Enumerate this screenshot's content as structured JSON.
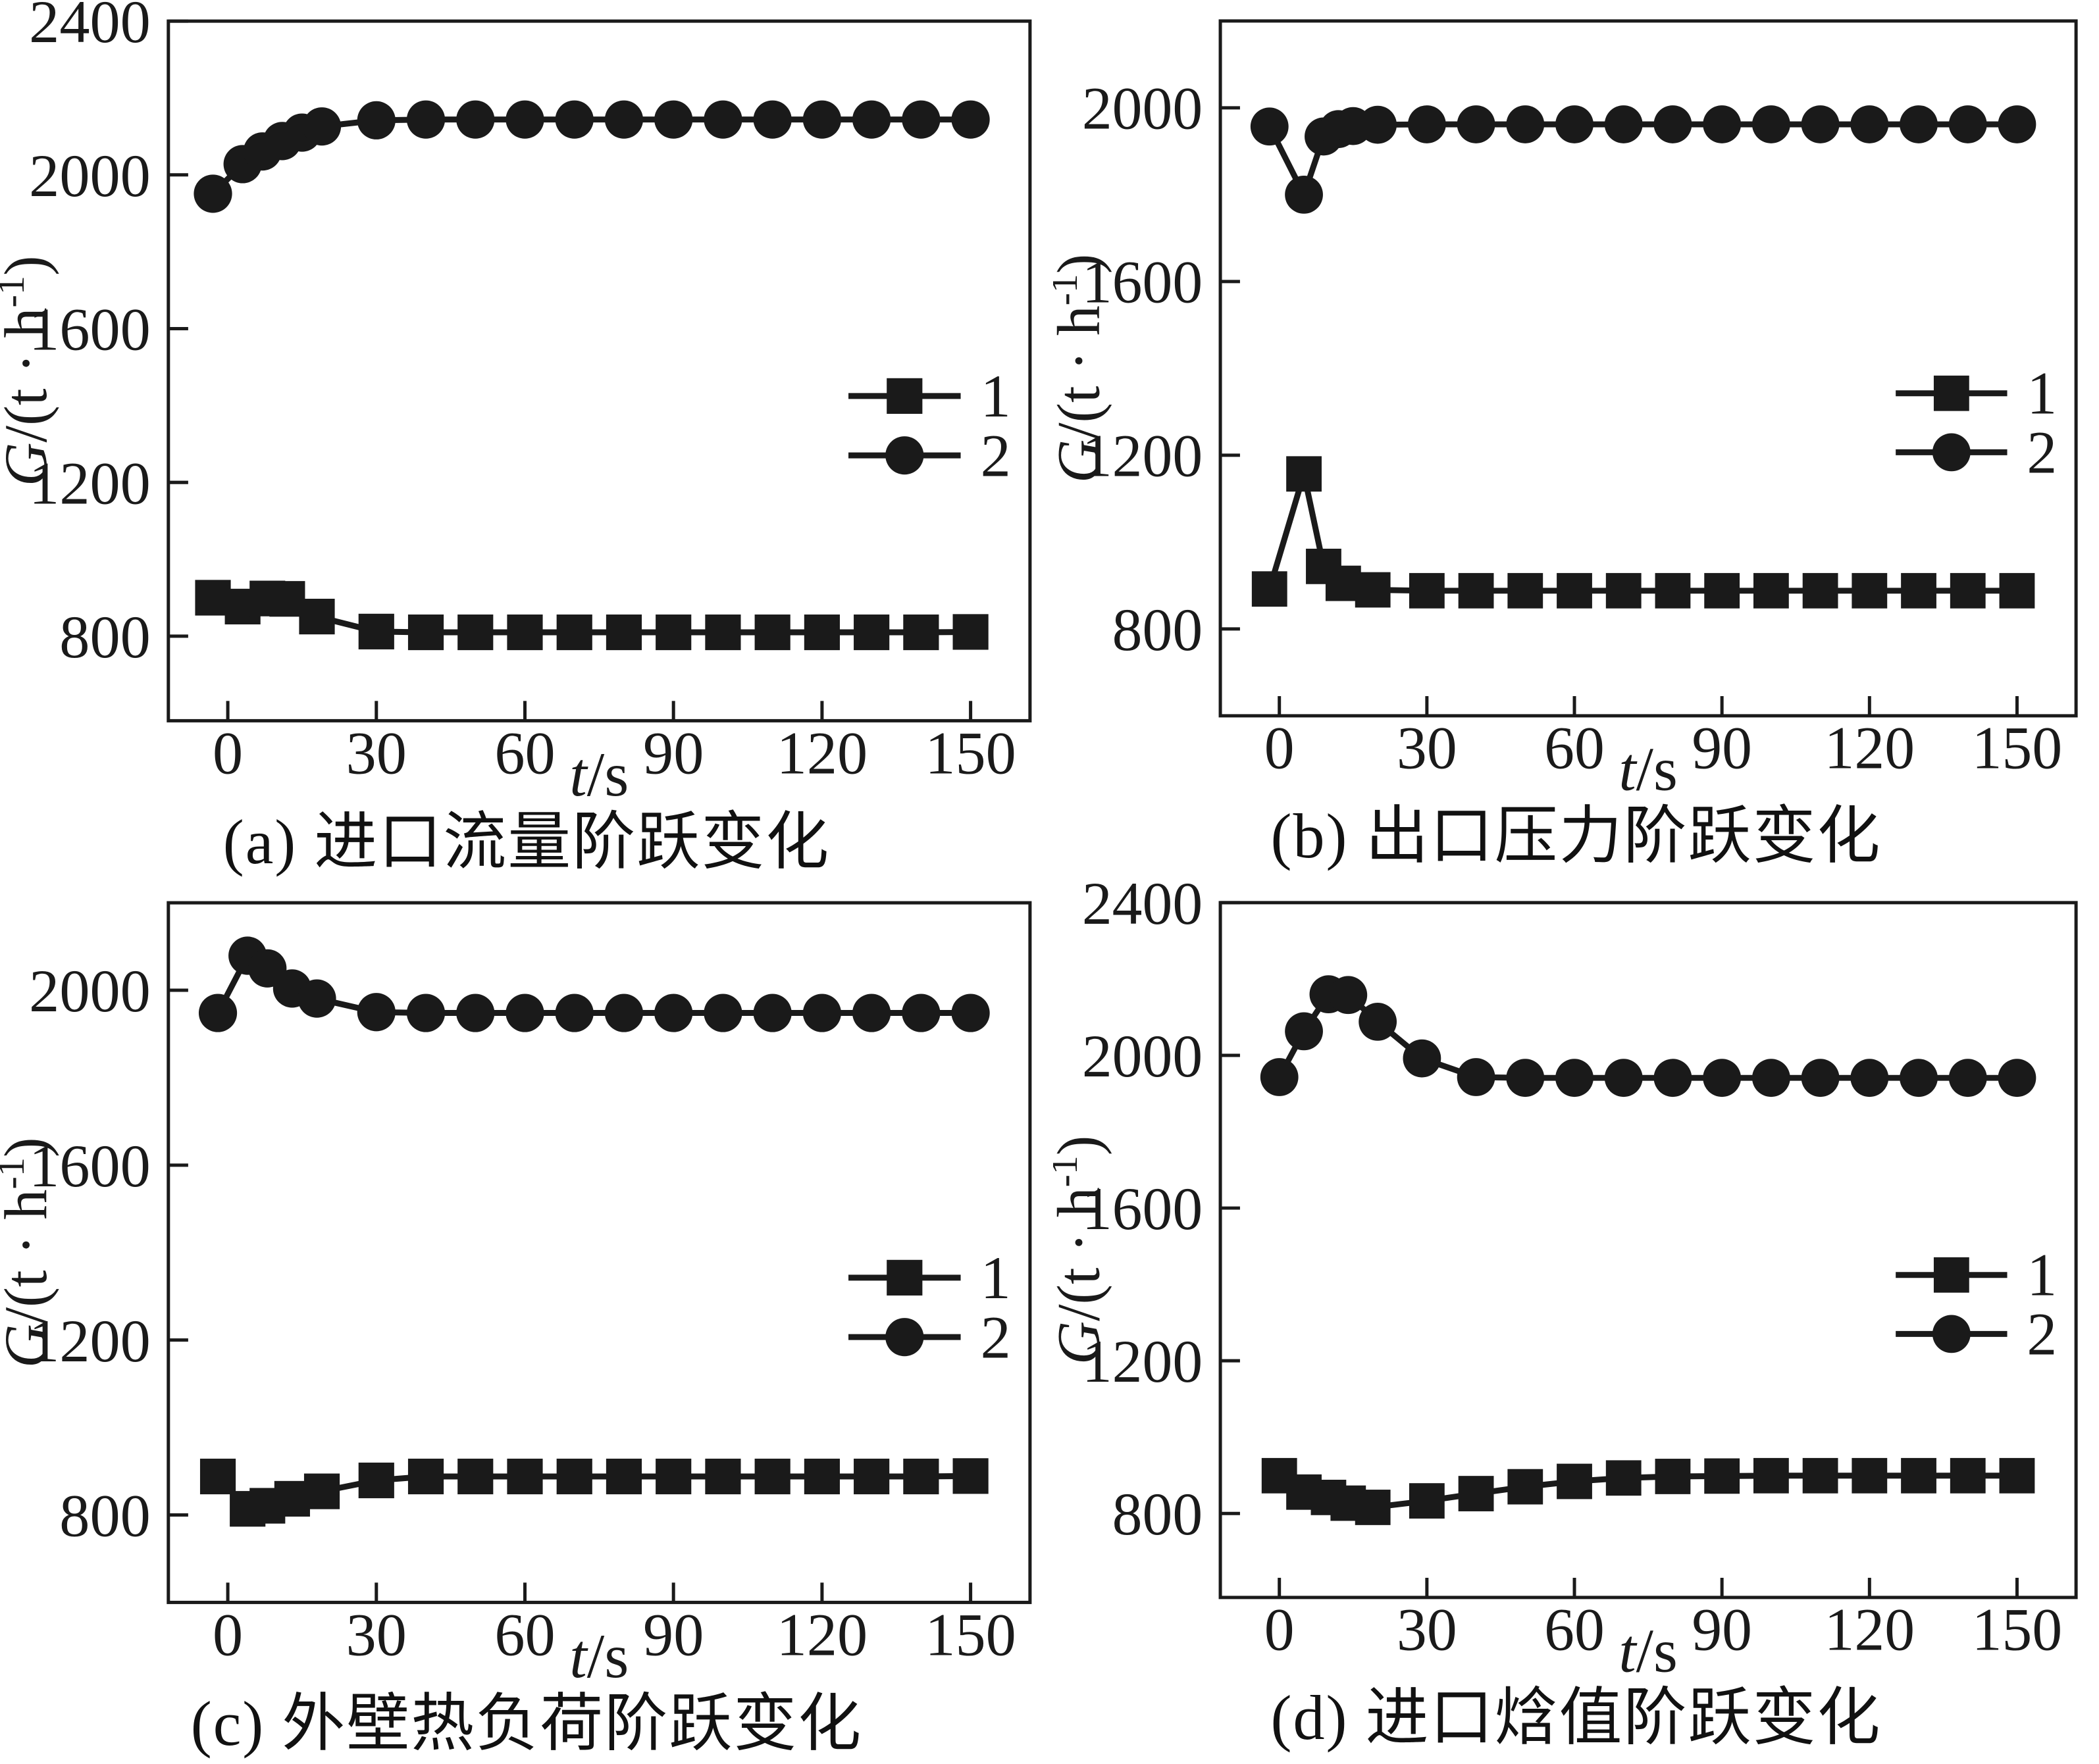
{
  "figure": {
    "title": "",
    "ink_color": "#1a1a1a",
    "background_color": "#ffffff",
    "ylabel_parts": {
      "base": "G",
      "divider": "/(t · h",
      "superscript": "-1",
      "close": ")"
    },
    "xlabel_parts": {
      "italic": "t",
      "rest": "/s"
    },
    "legend": [
      {
        "label": "1",
        "marker": "square"
      },
      {
        "label": "2",
        "marker": "circle"
      }
    ]
  },
  "chart_data": [
    {
      "id": "a",
      "type": "line",
      "caption": "(a) 进口流量阶跃变化",
      "xlabel": "t/s",
      "ylabel": "G/(t·h−1)",
      "grid": false,
      "legend_position": "right-middle",
      "xdomain": [
        -12,
        162
      ],
      "ydomain": [
        580,
        2400
      ],
      "xticks": [
        0,
        30,
        60,
        90,
        120,
        150
      ],
      "yticks": [
        800,
        1200,
        1600,
        2000,
        2400
      ],
      "series": [
        {
          "name": "1",
          "marker": "square",
          "points": [
            [
              -3,
              900
            ],
            [
              3,
              877
            ],
            [
              8,
              898
            ],
            [
              12,
              897
            ],
            [
              18,
              851
            ],
            [
              30,
              812
            ],
            [
              40,
              810
            ],
            [
              50,
              810
            ],
            [
              60,
              810
            ],
            [
              70,
              810
            ],
            [
              80,
              810
            ],
            [
              90,
              810
            ],
            [
              100,
              810
            ],
            [
              110,
              810
            ],
            [
              120,
              810
            ],
            [
              130,
              810
            ],
            [
              140,
              810
            ],
            [
              150,
              811
            ]
          ]
        },
        {
          "name": "2",
          "marker": "circle",
          "points": [
            [
              -3,
              1951
            ],
            [
              3,
              2028
            ],
            [
              7,
              2061
            ],
            [
              11,
              2088
            ],
            [
              15,
              2110
            ],
            [
              19,
              2126
            ],
            [
              30,
              2142
            ],
            [
              40,
              2144
            ],
            [
              50,
              2144
            ],
            [
              60,
              2144
            ],
            [
              70,
              2144
            ],
            [
              80,
              2144
            ],
            [
              90,
              2144
            ],
            [
              100,
              2144
            ],
            [
              110,
              2144
            ],
            [
              120,
              2144
            ],
            [
              130,
              2144
            ],
            [
              140,
              2144
            ],
            [
              150,
              2144
            ]
          ]
        }
      ]
    },
    {
      "id": "b",
      "type": "line",
      "caption": "(b) 出口压力阶跃变化",
      "xlabel": "t/s",
      "ylabel": "G/(t·h−1)",
      "grid": false,
      "legend_position": "right-middle",
      "xdomain": [
        -12,
        162
      ],
      "ydomain": [
        600,
        2200
      ],
      "xticks": [
        0,
        30,
        60,
        90,
        120,
        150
      ],
      "yticks": [
        800,
        1200,
        1600,
        2000
      ],
      "series": [
        {
          "name": "1",
          "marker": "square",
          "points": [
            [
              -2,
              892
            ],
            [
              5,
              1157
            ],
            [
              9,
              944
            ],
            [
              13,
              905
            ],
            [
              19,
              890
            ],
            [
              30,
              888
            ],
            [
              40,
              888
            ],
            [
              50,
              888
            ],
            [
              60,
              888
            ],
            [
              70,
              888
            ],
            [
              80,
              888
            ],
            [
              90,
              888
            ],
            [
              100,
              888
            ],
            [
              110,
              888
            ],
            [
              120,
              888
            ],
            [
              130,
              888
            ],
            [
              140,
              888
            ],
            [
              150,
              888
            ]
          ]
        },
        {
          "name": "2",
          "marker": "circle",
          "points": [
            [
              -2,
              1957
            ],
            [
              5,
              1800
            ],
            [
              9,
              1934
            ],
            [
              12,
              1951
            ],
            [
              15,
              1958
            ],
            [
              20,
              1961
            ],
            [
              30,
              1962
            ],
            [
              40,
              1962
            ],
            [
              50,
              1962
            ],
            [
              60,
              1962
            ],
            [
              70,
              1962
            ],
            [
              80,
              1962
            ],
            [
              90,
              1962
            ],
            [
              100,
              1962
            ],
            [
              110,
              1962
            ],
            [
              120,
              1962
            ],
            [
              130,
              1962
            ],
            [
              140,
              1962
            ],
            [
              150,
              1962
            ]
          ]
        }
      ]
    },
    {
      "id": "c",
      "type": "line",
      "caption": "(c) 外壁热负荷阶跃变化",
      "xlabel": "t/s",
      "ylabel": "G/(t·h−1)",
      "grid": false,
      "legend_position": "right-middle",
      "xdomain": [
        -12,
        162
      ],
      "ydomain": [
        600,
        2200
      ],
      "xticks": [
        0,
        30,
        60,
        90,
        120,
        150
      ],
      "yticks": [
        800,
        1200,
        1600,
        2000
      ],
      "series": [
        {
          "name": "1",
          "marker": "square",
          "points": [
            [
              -2,
              888
            ],
            [
              4,
              814
            ],
            [
              8,
              821
            ],
            [
              13,
              837
            ],
            [
              19,
              854
            ],
            [
              30,
              879
            ],
            [
              40,
              888
            ],
            [
              50,
              888
            ],
            [
              60,
              888
            ],
            [
              70,
              888
            ],
            [
              80,
              888
            ],
            [
              90,
              888
            ],
            [
              100,
              888
            ],
            [
              110,
              888
            ],
            [
              120,
              888
            ],
            [
              130,
              888
            ],
            [
              140,
              888
            ],
            [
              150,
              889
            ]
          ]
        },
        {
          "name": "2",
          "marker": "circle",
          "points": [
            [
              -2,
              1948
            ],
            [
              4,
              2079
            ],
            [
              8,
              2050
            ],
            [
              13,
              2004
            ],
            [
              18,
              1981
            ],
            [
              30,
              1950
            ],
            [
              40,
              1948
            ],
            [
              50,
              1948
            ],
            [
              60,
              1948
            ],
            [
              70,
              1948
            ],
            [
              80,
              1948
            ],
            [
              90,
              1948
            ],
            [
              100,
              1948
            ],
            [
              110,
              1948
            ],
            [
              120,
              1948
            ],
            [
              130,
              1948
            ],
            [
              140,
              1948
            ],
            [
              150,
              1948
            ]
          ]
        }
      ]
    },
    {
      "id": "d",
      "type": "line",
      "caption": "(d) 进口焓值阶跃变化",
      "xlabel": "t/s",
      "ylabel": "G/(t·h−1)",
      "grid": false,
      "legend_position": "right-middle",
      "xdomain": [
        -12,
        162
      ],
      "ydomain": [
        580,
        2400
      ],
      "xticks": [
        0,
        30,
        60,
        90,
        120,
        150
      ],
      "yticks": [
        800,
        1200,
        1600,
        2000,
        2400
      ],
      "series": [
        {
          "name": "1",
          "marker": "square",
          "points": [
            [
              0,
              899
            ],
            [
              5,
              856
            ],
            [
              10,
              842
            ],
            [
              14,
              827
            ],
            [
              19,
              816
            ],
            [
              30,
              833
            ],
            [
              40,
              852
            ],
            [
              50,
              870
            ],
            [
              60,
              884
            ],
            [
              70,
              893
            ],
            [
              80,
              897
            ],
            [
              90,
              898
            ],
            [
              100,
              899
            ],
            [
              110,
              899
            ],
            [
              120,
              899
            ],
            [
              130,
              899
            ],
            [
              140,
              899
            ],
            [
              150,
              899
            ]
          ]
        },
        {
          "name": "2",
          "marker": "circle",
          "points": [
            [
              0,
              1943
            ],
            [
              5,
              2063
            ],
            [
              10,
              2160
            ],
            [
              14,
              2158
            ],
            [
              20,
              2088
            ],
            [
              29,
              1992
            ],
            [
              40,
              1943
            ],
            [
              50,
              1941
            ],
            [
              60,
              1941
            ],
            [
              70,
              1941
            ],
            [
              80,
              1941
            ],
            [
              90,
              1941
            ],
            [
              100,
              1941
            ],
            [
              110,
              1941
            ],
            [
              120,
              1941
            ],
            [
              130,
              1941
            ],
            [
              140,
              1941
            ],
            [
              150,
              1941
            ]
          ]
        }
      ]
    }
  ]
}
